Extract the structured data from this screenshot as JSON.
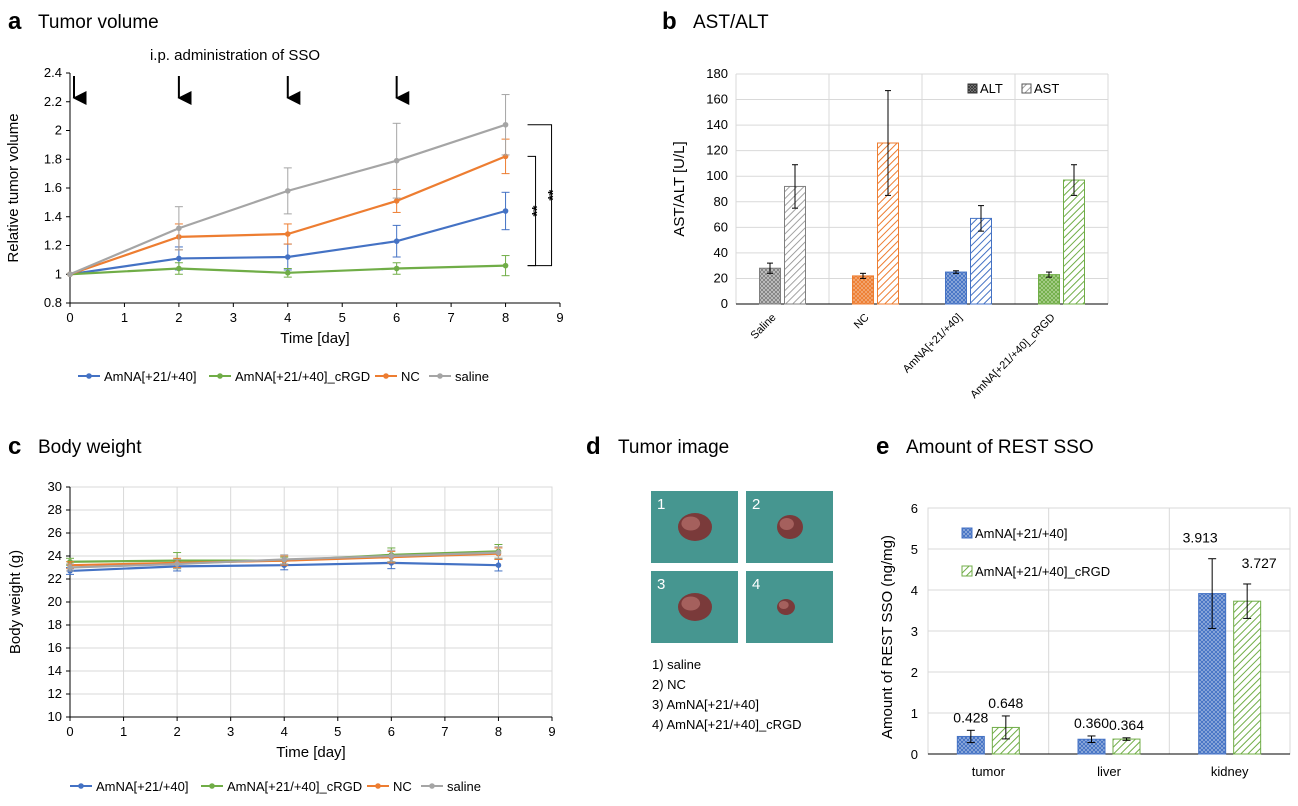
{
  "panel_letters": {
    "a": "a",
    "b": "b",
    "c": "c",
    "d": "d",
    "e": "e"
  },
  "panels": {
    "a": {
      "title": "Tumor volume"
    },
    "b": {
      "title": "AST/ALT"
    },
    "c": {
      "title": "Body weight"
    },
    "d": {
      "title": "Tumor image"
    },
    "e": {
      "title": "Amount of REST SSO"
    }
  },
  "colors": {
    "blue": "#4472C4",
    "green": "#70AD47",
    "orange": "#ED7D31",
    "gray": "#A5A5A5"
  },
  "chart_data": [
    {
      "id": "tumor_volume",
      "type": "line",
      "title": "Tumor volume",
      "annotation": "i.p. administration of SSO",
      "arrow_days": [
        0,
        2,
        4,
        6
      ],
      "xlabel": "Time [day]",
      "ylabel": "Relative tumor volume",
      "xlim": [
        0,
        9
      ],
      "ylim": [
        0.8,
        2.4
      ],
      "xticks": [
        0,
        1,
        2,
        3,
        4,
        5,
        6,
        7,
        8,
        9
      ],
      "yticks": [
        0.8,
        1,
        1.2,
        1.4,
        1.6,
        1.8,
        2,
        2.2,
        2.4
      ],
      "ytick_labels": [
        "0.8",
        "1",
        "1.2",
        "1.4",
        "1.6",
        "1.8",
        "2",
        "2.2",
        "2.4"
      ],
      "x": [
        0,
        2,
        4,
        6,
        8
      ],
      "series": [
        {
          "name": "AmNA[+21/+40]",
          "color": "#4472C4",
          "values": [
            1.0,
            1.11,
            1.12,
            1.23,
            1.44
          ],
          "err": [
            0,
            0.08,
            0.09,
            0.11,
            0.13
          ]
        },
        {
          "name": "AmNA[+21/+40]_cRGD",
          "color": "#70AD47",
          "values": [
            1.0,
            1.04,
            1.01,
            1.04,
            1.06
          ],
          "err": [
            0,
            0.04,
            0.03,
            0.04,
            0.07
          ]
        },
        {
          "name": "NC",
          "color": "#ED7D31",
          "values": [
            1.0,
            1.26,
            1.28,
            1.51,
            1.82
          ],
          "err": [
            0,
            0.09,
            0.07,
            0.08,
            0.12
          ]
        },
        {
          "name": "saline",
          "color": "#A5A5A5",
          "values": [
            1.0,
            1.32,
            1.58,
            1.79,
            2.04
          ],
          "err": [
            0,
            0.15,
            0.16,
            0.26,
            0.21
          ]
        }
      ],
      "significance": [
        {
          "label": "**",
          "y_top": 1.82,
          "y_bottom": 1.06
        },
        {
          "label": "**",
          "y_top": 2.04,
          "y_bottom": 1.06
        }
      ]
    },
    {
      "id": "ast_alt",
      "type": "bar",
      "title": "AST/ALT",
      "ylabel": "AST/ALT [U/L]",
      "ylim": [
        0,
        180
      ],
      "yticks": [
        0,
        20,
        40,
        60,
        80,
        100,
        120,
        140,
        160,
        180
      ],
      "categories": [
        "Saline",
        "NC",
        "AmNA[+21/+40]",
        "AmNA[+21/+40]_cRGD"
      ],
      "category_colors": [
        "#A5A5A5",
        "#ED7D31",
        "#4472C4",
        "#70AD47"
      ],
      "legend": "top-right",
      "series": [
        {
          "name": "ALT",
          "pattern": "crosshatch",
          "values": [
            28,
            22,
            25,
            23
          ],
          "err": [
            4,
            2,
            1,
            2
          ]
        },
        {
          "name": "AST",
          "pattern": "diagonal",
          "values": [
            92,
            126,
            67,
            97
          ],
          "err": [
            17,
            41,
            10,
            12
          ]
        }
      ]
    },
    {
      "id": "body_weight",
      "type": "line",
      "title": "Body weight",
      "xlabel": "Time [day]",
      "ylabel": "Body weight (g)",
      "xlim": [
        0,
        9
      ],
      "ylim": [
        10,
        30
      ],
      "xticks": [
        0,
        1,
        2,
        3,
        4,
        5,
        6,
        7,
        8,
        9
      ],
      "yticks": [
        10,
        12,
        14,
        16,
        18,
        20,
        22,
        24,
        26,
        28,
        30
      ],
      "x": [
        0,
        2,
        4,
        6,
        8
      ],
      "series": [
        {
          "name": "AmNA[+21/+40]",
          "color": "#4472C4",
          "values": [
            22.7,
            23.1,
            23.2,
            23.4,
            23.2
          ],
          "err": [
            0.3,
            0.4,
            0.4,
            0.5,
            0.5
          ]
        },
        {
          "name": "AmNA[+21/+40]_cRGD",
          "color": "#70AD47",
          "values": [
            23.5,
            23.6,
            23.6,
            24.1,
            24.4
          ],
          "err": [
            0.3,
            0.7,
            0.3,
            0.6,
            0.6
          ]
        },
        {
          "name": "NC",
          "color": "#ED7D31",
          "values": [
            23.2,
            23.4,
            23.6,
            23.9,
            24.2
          ],
          "err": [
            0.3,
            0.4,
            0.4,
            0.5,
            0.5
          ]
        },
        {
          "name": "saline",
          "color": "#A5A5A5",
          "values": [
            23.0,
            23.3,
            23.7,
            24.0,
            24.3
          ],
          "err": [
            0.3,
            0.4,
            0.4,
            0.5,
            0.5
          ]
        }
      ]
    },
    {
      "id": "rest_sso",
      "type": "bar",
      "title": "Amount of REST SSO",
      "ylabel": "Amount of REST SSO (ng/mg)",
      "ylim": [
        0,
        6
      ],
      "yticks": [
        0,
        1,
        2,
        3,
        4,
        5,
        6
      ],
      "categories": [
        "tumor",
        "liver",
        "kidney"
      ],
      "legend": "top-left",
      "series": [
        {
          "name": "AmNA[+21/+40]",
          "color": "#4472C4",
          "pattern": "crosshatch",
          "values": [
            0.428,
            0.36,
            3.913
          ],
          "labels": [
            "0.428",
            "0.360",
            "3.913"
          ],
          "err": [
            0.15,
            0.08,
            0.85
          ]
        },
        {
          "name": "AmNA[+21/+40]_cRGD",
          "color": "#70AD47",
          "pattern": "diagonal",
          "values": [
            0.648,
            0.364,
            3.727
          ],
          "labels": [
            "0.648",
            "0.364",
            "3.727"
          ],
          "err": [
            0.28,
            0.03,
            0.42
          ]
        }
      ]
    }
  ],
  "tumor_images": {
    "tiles": [
      {
        "number": "1",
        "tumor_size": "large"
      },
      {
        "number": "2",
        "tumor_size": "medium"
      },
      {
        "number": "3",
        "tumor_size": "large"
      },
      {
        "number": "4",
        "tumor_size": "small"
      }
    ],
    "captions": [
      "1) saline",
      "2) NC",
      "3) AmNA[+21/+40]",
      "4) AmNA[+21/+40]_cRGD"
    ]
  }
}
